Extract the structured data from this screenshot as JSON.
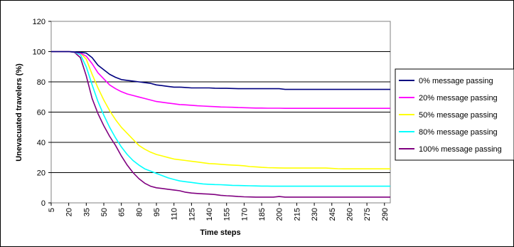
{
  "chart_data": {
    "type": "line",
    "title": "",
    "xlabel": "Time steps",
    "ylabel": "Unevacuated travelers (%)",
    "ylim": [
      0,
      120
    ],
    "y_ticks": [
      0,
      20,
      40,
      60,
      80,
      100,
      120
    ],
    "x_tick_labels": [
      "5",
      "20",
      "35",
      "50",
      "65",
      "80",
      "95",
      "110",
      "125",
      "140",
      "155",
      "170",
      "185",
      "200",
      "215",
      "230",
      "245",
      "260",
      "275",
      "290"
    ],
    "x": [
      5,
      20,
      25,
      30,
      35,
      40,
      45,
      50,
      55,
      60,
      65,
      70,
      75,
      80,
      85,
      90,
      95,
      100,
      105,
      110,
      115,
      120,
      125,
      130,
      135,
      140,
      145,
      150,
      155,
      160,
      165,
      170,
      175,
      180,
      185,
      190,
      195,
      200,
      205,
      210,
      215,
      220,
      225,
      230,
      235,
      240,
      245,
      250,
      255,
      260,
      265,
      270,
      275,
      280,
      285,
      290,
      295
    ],
    "grid": "horizontal major lines",
    "legend_position": "right",
    "series": [
      {
        "name": "0% message passing",
        "color": "#000080",
        "values": [
          100,
          100,
          99.8,
          99.5,
          99,
          96,
          91,
          88,
          85,
          83,
          81.5,
          81,
          80.5,
          80,
          79.5,
          79,
          78,
          77.5,
          77,
          76.5,
          76.5,
          76.3,
          76,
          76,
          76,
          76,
          75.8,
          75.7,
          75.7,
          75.6,
          75.5,
          75.5,
          75.5,
          75.5,
          75.5,
          75.5,
          75.5,
          75.5,
          75,
          75,
          75,
          75,
          75,
          75,
          75,
          75,
          75,
          75,
          75,
          75,
          75,
          75,
          75,
          75,
          75,
          75,
          75
        ]
      },
      {
        "name": "20% message passing",
        "color": "#ff00ff",
        "values": [
          100,
          100,
          99.8,
          99,
          97,
          92,
          86,
          82,
          78,
          75.5,
          73.5,
          72,
          71,
          70,
          69,
          68,
          67,
          66.5,
          66,
          65.5,
          65,
          64.8,
          64.5,
          64.2,
          64,
          63.8,
          63.6,
          63.4,
          63.3,
          63.2,
          63,
          62.9,
          62.8,
          62.7,
          62.7,
          62.6,
          62.6,
          62.6,
          62.5,
          62.5,
          62.5,
          62.5,
          62.5,
          62.5,
          62.5,
          62.5,
          62.5,
          62.5,
          62.5,
          62.5,
          62.5,
          62.5,
          62.5,
          62.5,
          62.5,
          62.5,
          62.5
        ]
      },
      {
        "name": "50% message passing",
        "color": "#ffff00",
        "values": [
          100,
          100,
          99.8,
          99,
          95,
          85,
          76,
          68,
          61,
          55,
          50,
          46,
          42,
          38,
          35.5,
          33.5,
          32,
          31,
          30,
          29,
          28.5,
          28,
          27.5,
          27,
          26.5,
          26,
          25.8,
          25.5,
          25.2,
          25,
          24.8,
          24.5,
          24,
          23.8,
          23.5,
          23.3,
          23.2,
          23.1,
          23,
          23,
          23,
          23,
          23,
          23,
          23,
          23,
          22.8,
          22.6,
          22.5,
          22.5,
          22.5,
          22.5,
          22.5,
          22.5,
          22.5,
          22.5,
          22.5
        ]
      },
      {
        "name": "80% message passing",
        "color": "#00ffff",
        "values": [
          100,
          100,
          99.7,
          98,
          90,
          78,
          67,
          58,
          50,
          43,
          37,
          32,
          28,
          25,
          22.5,
          21,
          19.5,
          18,
          16.5,
          15.5,
          14.5,
          14,
          13.5,
          13,
          12.5,
          12.3,
          12.1,
          12,
          11.8,
          11.6,
          11.5,
          11.4,
          11.3,
          11.2,
          11.1,
          11.1,
          11,
          11,
          11,
          11,
          11,
          11,
          11,
          11,
          11,
          11,
          11,
          11,
          11,
          11,
          11,
          11,
          11,
          11,
          11,
          11,
          11
        ]
      },
      {
        "name": "100% message passing",
        "color": "#800080",
        "values": [
          100,
          100,
          99.5,
          96,
          84,
          69,
          59,
          51,
          44,
          38,
          31,
          25,
          20,
          16,
          13,
          11,
          10,
          9.5,
          9,
          8.5,
          8,
          7,
          6.5,
          6.2,
          6,
          5.8,
          5.5,
          5,
          4.7,
          4.5,
          4.2,
          4,
          3.9,
          3.8,
          3.8,
          3.8,
          3.8,
          4.2,
          3.8,
          3.8,
          3.8,
          3.8,
          3.8,
          3.8,
          3.8,
          3.8,
          3.8,
          3.8,
          3.8,
          3.8,
          3.8,
          3.8,
          3.8,
          3.8,
          3.8,
          3.8,
          3.8
        ]
      }
    ]
  }
}
